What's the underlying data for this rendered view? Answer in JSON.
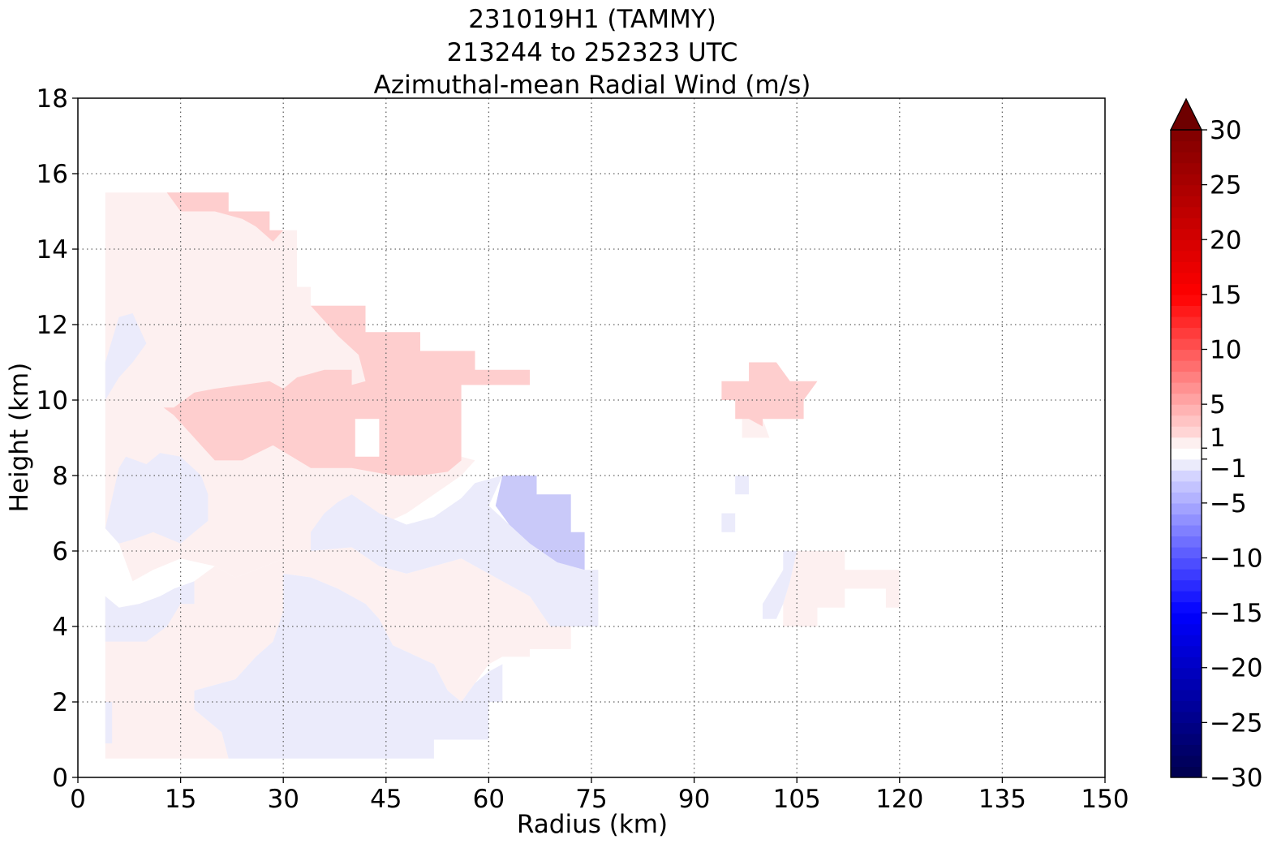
{
  "chart_data": {
    "type": "heatmap",
    "title_lines": [
      "231019H1 (TAMMY)",
      "213244 to 252323 UTC",
      "Azimuthal-mean Radial Wind (m/s)"
    ],
    "xlabel": "Radius (km)",
    "ylabel": "Height (km)",
    "xlim": [
      0,
      150
    ],
    "ylim": [
      0,
      18
    ],
    "xticks": [
      0,
      15,
      30,
      45,
      60,
      75,
      90,
      105,
      120,
      135,
      150
    ],
    "yticks": [
      0,
      2,
      4,
      6,
      8,
      10,
      12,
      14,
      16,
      18
    ],
    "grid": true,
    "colorbar": {
      "label_ticks": [
        "30",
        "25",
        "20",
        "15",
        "10",
        "5",
        "1",
        "−1",
        "−5",
        "−10",
        "−15",
        "−20",
        "−25",
        "−30"
      ],
      "tick_values": [
        30,
        25,
        20,
        15,
        10,
        5,
        1,
        -1,
        -5,
        -10,
        -15,
        -20,
        -25,
        -30
      ],
      "extend": "max",
      "colormap": "seismic"
    },
    "fill_colors": {
      "neg_1": "#ebebfb",
      "neg_5": "#c9c9f9",
      "pos_1": "#fdf0f0",
      "pos_5": "#fecece"
    },
    "regions": [
      {
        "level": "pos_1",
        "points": [
          [
            4,
            15.5
          ],
          [
            22,
            15.5
          ],
          [
            22,
            15
          ],
          [
            28,
            15
          ],
          [
            28,
            14.5
          ],
          [
            32,
            14.5
          ],
          [
            32,
            13
          ],
          [
            34,
            13
          ],
          [
            34,
            12.5
          ],
          [
            42,
            12.5
          ],
          [
            42,
            11.5
          ],
          [
            44,
            11
          ],
          [
            44,
            9.5
          ],
          [
            40,
            9.5
          ],
          [
            40,
            8.5
          ],
          [
            56,
            8.5
          ],
          [
            58,
            8.4
          ],
          [
            56,
            8
          ],
          [
            52,
            7.5
          ],
          [
            48,
            7
          ],
          [
            42,
            6.5
          ],
          [
            38,
            6.3
          ],
          [
            34,
            6
          ],
          [
            30,
            5.8
          ],
          [
            26,
            5.5
          ],
          [
            23,
            5.3
          ],
          [
            20,
            5.6
          ],
          [
            15,
            5.8
          ],
          [
            11,
            5.5
          ],
          [
            8,
            5.2
          ],
          [
            6,
            6.2
          ],
          [
            4,
            6.6
          ]
        ]
      },
      {
        "level": "pos_1",
        "points": [
          [
            4,
            0.5
          ],
          [
            22,
            0.5
          ],
          [
            21,
            1.2
          ],
          [
            17,
            1.8
          ],
          [
            17,
            2.3
          ],
          [
            23,
            2.6
          ],
          [
            26,
            3.2
          ],
          [
            28.5,
            3.6
          ],
          [
            30,
            4.4
          ],
          [
            30,
            5.4
          ],
          [
            34,
            5.3
          ],
          [
            38,
            5
          ],
          [
            42,
            4.6
          ],
          [
            44,
            4.2
          ],
          [
            46,
            3.5
          ],
          [
            52,
            3
          ],
          [
            54,
            2.3
          ],
          [
            56,
            2
          ],
          [
            58,
            2.5
          ],
          [
            60,
            3
          ],
          [
            62,
            3.2
          ],
          [
            66,
            3.2
          ],
          [
            66,
            3.4
          ],
          [
            72,
            3.4
          ],
          [
            72,
            4
          ],
          [
            69,
            4
          ],
          [
            66,
            4.8
          ],
          [
            62,
            5.2
          ],
          [
            56,
            5.8
          ],
          [
            52,
            5.6
          ],
          [
            48,
            5.4
          ],
          [
            44,
            5.6
          ],
          [
            40,
            6.1
          ],
          [
            34,
            6
          ],
          [
            30,
            5.8
          ],
          [
            26,
            5.5
          ],
          [
            23,
            5.3
          ],
          [
            20,
            5.6
          ],
          [
            17,
            5.2
          ],
          [
            15,
            5
          ],
          [
            12,
            4.8
          ],
          [
            9,
            4.6
          ],
          [
            6,
            4.5
          ],
          [
            4,
            4.8
          ]
        ]
      },
      {
        "level": "pos_1",
        "points": [
          [
            103,
            4
          ],
          [
            108,
            4
          ],
          [
            108,
            4.5
          ],
          [
            112,
            4.5
          ],
          [
            112,
            5
          ],
          [
            118,
            5
          ],
          [
            118,
            4.5
          ],
          [
            120,
            4.5
          ],
          [
            120,
            5.5
          ],
          [
            112,
            5.5
          ],
          [
            112,
            6
          ],
          [
            105,
            6
          ],
          [
            104,
            5.2
          ],
          [
            103,
            4.6
          ]
        ]
      },
      {
        "level": "pos_1",
        "points": [
          [
            97,
            9
          ],
          [
            101,
            9
          ],
          [
            100,
            9.5
          ],
          [
            97,
            9.5
          ]
        ]
      },
      {
        "level": "neg_1",
        "points": [
          [
            4,
            6.6
          ],
          [
            6,
            8.2
          ],
          [
            7,
            8.5
          ],
          [
            10,
            8.3
          ],
          [
            12,
            8.6
          ],
          [
            15,
            8.5
          ],
          [
            18,
            8
          ],
          [
            19,
            7.5
          ],
          [
            19,
            6.8
          ],
          [
            17,
            6.5
          ],
          [
            15,
            6.2
          ],
          [
            11,
            6.5
          ],
          [
            8,
            6.3
          ],
          [
            6,
            6.2
          ]
        ]
      },
      {
        "level": "neg_1",
        "points": [
          [
            4,
            11
          ],
          [
            6,
            12.2
          ],
          [
            8,
            12.3
          ],
          [
            10,
            11.5
          ],
          [
            8,
            11
          ],
          [
            6,
            10.6
          ],
          [
            4,
            10
          ]
        ]
      },
      {
        "level": "neg_1",
        "points": [
          [
            4,
            3.6
          ],
          [
            6,
            3.6
          ],
          [
            10,
            3.6
          ],
          [
            13,
            4
          ],
          [
            15,
            4.6
          ],
          [
            17,
            4.6
          ],
          [
            17,
            5.2
          ],
          [
            14,
            5
          ],
          [
            12,
            4.8
          ],
          [
            9,
            4.6
          ],
          [
            6,
            4.5
          ],
          [
            4,
            4.8
          ]
        ]
      },
      {
        "level": "neg_1",
        "points": [
          [
            4,
            0.9
          ],
          [
            5,
            0.9
          ],
          [
            5,
            2
          ],
          [
            4,
            2
          ]
        ]
      },
      {
        "level": "neg_1",
        "points": [
          [
            22,
            0.5
          ],
          [
            52,
            0.5
          ],
          [
            52,
            1
          ],
          [
            60,
            1
          ],
          [
            60,
            2.2
          ],
          [
            58,
            2.5
          ],
          [
            56,
            2
          ],
          [
            54,
            2.3
          ],
          [
            52,
            3
          ],
          [
            46,
            3.5
          ],
          [
            44,
            4.2
          ],
          [
            42,
            4.6
          ],
          [
            38,
            5
          ],
          [
            34,
            5.3
          ],
          [
            30,
            5.4
          ],
          [
            30,
            4.4
          ],
          [
            28.5,
            3.6
          ],
          [
            26,
            3.2
          ],
          [
            23,
            2.6
          ],
          [
            17,
            2.3
          ],
          [
            17,
            1.8
          ],
          [
            21,
            1.2
          ]
        ]
      },
      {
        "level": "neg_1",
        "points": [
          [
            34,
            6.5
          ],
          [
            36,
            7
          ],
          [
            38,
            7.3
          ],
          [
            40,
            7.5
          ],
          [
            44,
            7
          ],
          [
            48,
            6.7
          ],
          [
            52,
            6.9
          ],
          [
            56,
            7.4
          ],
          [
            58,
            7.8
          ],
          [
            62,
            8
          ],
          [
            60,
            7.2
          ],
          [
            63,
            6.7
          ],
          [
            66,
            6.2
          ],
          [
            70,
            5.7
          ],
          [
            74,
            5.5
          ],
          [
            76,
            5.5
          ],
          [
            76,
            4
          ],
          [
            72,
            4
          ],
          [
            69,
            4
          ],
          [
            66,
            4.8
          ],
          [
            62,
            5.2
          ],
          [
            56,
            5.8
          ],
          [
            52,
            5.6
          ],
          [
            48,
            5.4
          ],
          [
            44,
            5.6
          ],
          [
            40,
            6.1
          ],
          [
            34,
            6
          ]
        ]
      },
      {
        "level": "neg_1",
        "points": [
          [
            58,
            2.5
          ],
          [
            60,
            2.8
          ],
          [
            62,
            3
          ],
          [
            62,
            2
          ],
          [
            60,
            2
          ]
        ]
      },
      {
        "level": "neg_1",
        "points": [
          [
            100,
            4.6
          ],
          [
            102,
            5.2
          ],
          [
            103,
            5.5
          ],
          [
            103,
            6
          ],
          [
            105,
            6
          ],
          [
            104,
            5.2
          ],
          [
            103,
            4.6
          ],
          [
            102,
            4.2
          ],
          [
            100,
            4.2
          ]
        ]
      },
      {
        "level": "neg_1",
        "points": [
          [
            94,
            7
          ],
          [
            96,
            7
          ],
          [
            96,
            6.5
          ],
          [
            94,
            6.5
          ]
        ]
      },
      {
        "level": "neg_1",
        "points": [
          [
            96,
            7.5
          ],
          [
            98,
            7.5
          ],
          [
            98,
            8
          ],
          [
            96,
            8
          ]
        ]
      },
      {
        "level": "neg_5",
        "points": [
          [
            62,
            8
          ],
          [
            67,
            8
          ],
          [
            67,
            7.5
          ],
          [
            72,
            7.5
          ],
          [
            72,
            6.5
          ],
          [
            74,
            6.5
          ],
          [
            74,
            5.5
          ],
          [
            70,
            5.7
          ],
          [
            66,
            6.2
          ],
          [
            63,
            6.7
          ],
          [
            61,
            7.2
          ]
        ]
      },
      {
        "level": "pos_5",
        "points": [
          [
            13,
            15.5
          ],
          [
            22,
            15.5
          ],
          [
            22,
            15
          ],
          [
            28,
            15
          ],
          [
            28,
            14.5
          ],
          [
            30,
            14.5
          ],
          [
            28.5,
            14.2
          ],
          [
            26,
            14.6
          ],
          [
            24,
            14.8
          ],
          [
            20,
            15
          ],
          [
            17,
            15
          ],
          [
            15,
            15
          ]
        ]
      },
      {
        "level": "pos_5",
        "points": [
          [
            34,
            12.5
          ],
          [
            42,
            12.5
          ],
          [
            42,
            11.8
          ],
          [
            50,
            11.8
          ],
          [
            50,
            11.3
          ],
          [
            58,
            11.3
          ],
          [
            58,
            10.8
          ],
          [
            66,
            10.8
          ],
          [
            66,
            10.4
          ],
          [
            56,
            10.4
          ],
          [
            56,
            8.4
          ],
          [
            54,
            8.1
          ],
          [
            50,
            8
          ],
          [
            46,
            8
          ],
          [
            40,
            8.2
          ],
          [
            34,
            8.2
          ],
          [
            28.5,
            8.8
          ],
          [
            24,
            8.4
          ],
          [
            20,
            8.4
          ],
          [
            17,
            9
          ],
          [
            14,
            9.6
          ],
          [
            12.5,
            9.8
          ],
          [
            14,
            9.8
          ],
          [
            17,
            10.2
          ],
          [
            20,
            10.3
          ],
          [
            24,
            10.4
          ],
          [
            28,
            10.5
          ],
          [
            30,
            10.3
          ],
          [
            32,
            10.6
          ],
          [
            36,
            10.8
          ],
          [
            40,
            10.8
          ],
          [
            40,
            10.4
          ],
          [
            42,
            10.5
          ],
          [
            41,
            11.2
          ],
          [
            38,
            11.7
          ]
        ]
      },
      {
        "level": "pos_5",
        "points": [
          [
            94,
            10
          ],
          [
            96,
            10
          ],
          [
            96,
            9.5
          ],
          [
            98,
            9.5
          ],
          [
            100,
            9.3
          ],
          [
            100,
            9.5
          ],
          [
            106,
            9.5
          ],
          [
            106,
            10
          ],
          [
            108,
            10.5
          ],
          [
            104,
            10.5
          ],
          [
            102,
            11
          ],
          [
            98,
            11
          ],
          [
            98,
            10.5
          ],
          [
            94,
            10.5
          ]
        ]
      }
    ],
    "holes": [
      {
        "points": [
          [
            40.5,
            8.5
          ],
          [
            44,
            8.5
          ],
          [
            44,
            9.5
          ],
          [
            40.5,
            9.5
          ]
        ]
      }
    ]
  }
}
